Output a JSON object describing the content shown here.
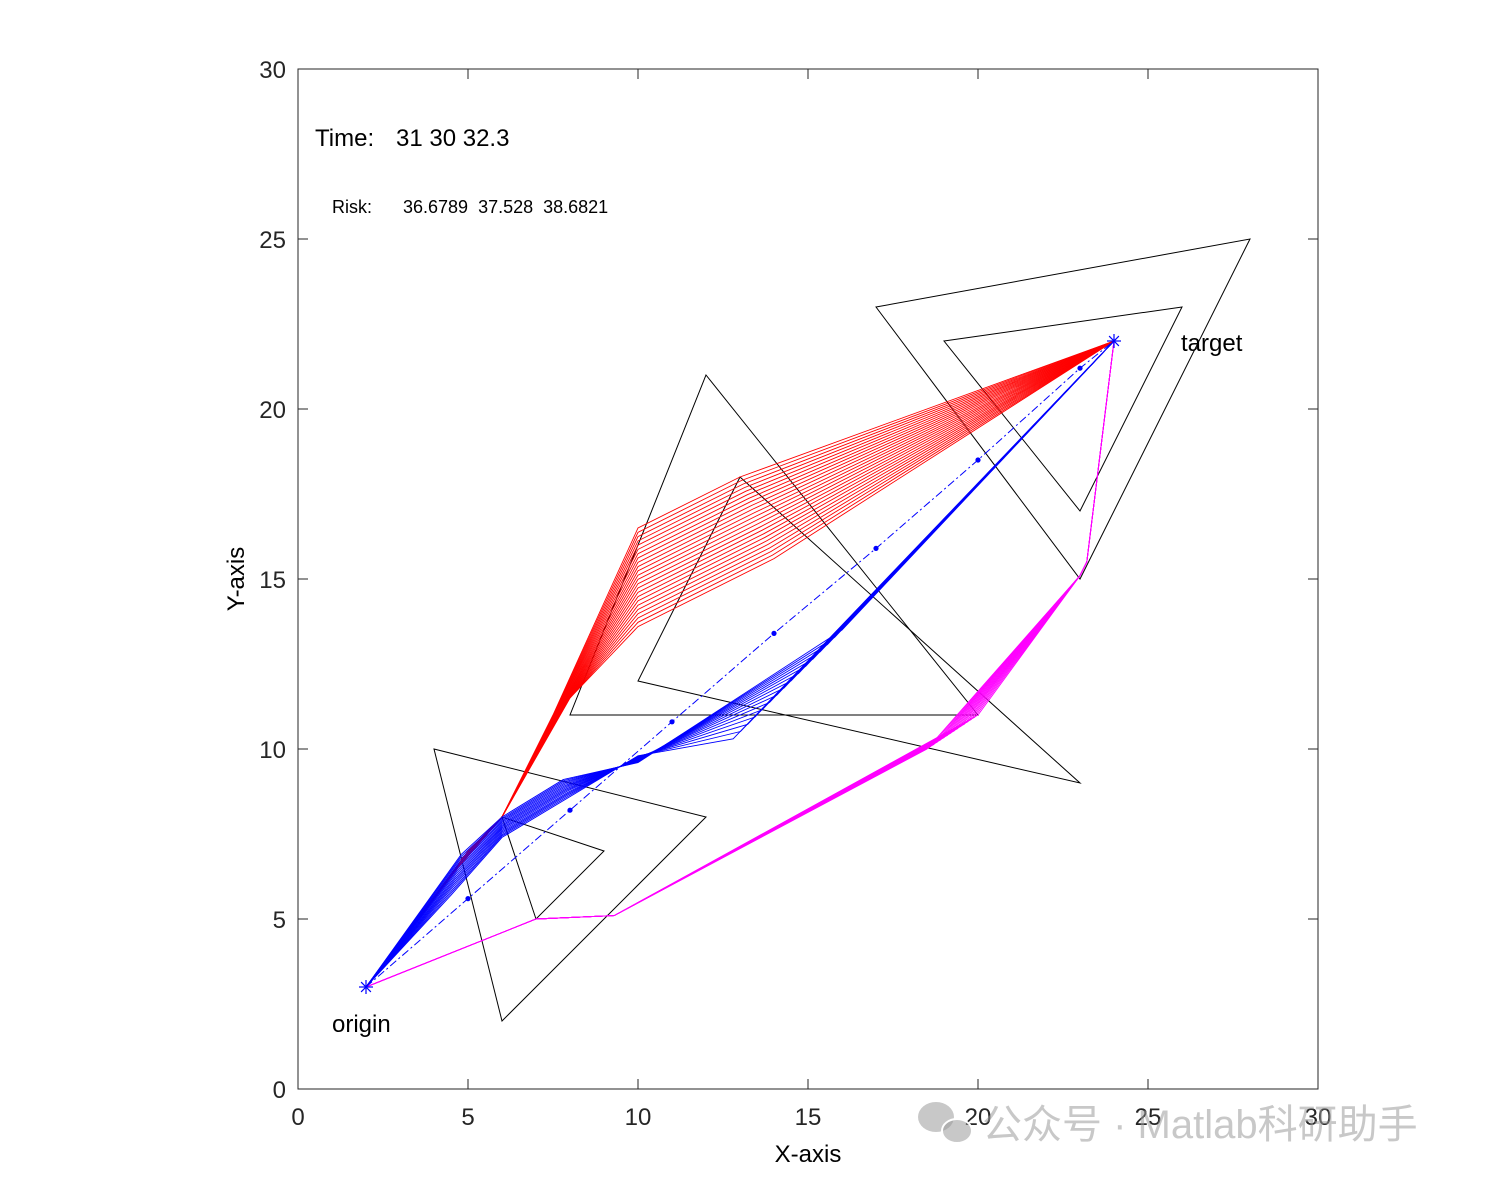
{
  "chart_data": {
    "type": "line",
    "title": "",
    "xlabel": "X-axis",
    "ylabel": "Y-axis",
    "xlim": [
      0,
      30
    ],
    "ylim": [
      0,
      30
    ],
    "xticks": [
      0,
      5,
      10,
      15,
      20,
      25,
      30
    ],
    "yticks": [
      0,
      5,
      10,
      15,
      20,
      25,
      30
    ],
    "grid": false,
    "legend": "none",
    "annotations": {
      "time_label": "Time:",
      "time_values": "31 30 32.3",
      "risk_label": "Risk:",
      "risk_values": "36.6789  37.528  38.6821",
      "origin_label": "origin",
      "target_label": "target"
    },
    "origin": [
      2,
      3
    ],
    "target": [
      24,
      22
    ],
    "obstacles": [
      [
        [
          4,
          10
        ],
        [
          12,
          8
        ],
        [
          6,
          2
        ]
      ],
      [
        [
          6,
          8
        ],
        [
          9,
          7
        ],
        [
          7,
          5
        ]
      ],
      [
        [
          12,
          21
        ],
        [
          20,
          11
        ],
        [
          8,
          11
        ]
      ],
      [
        [
          13,
          18
        ],
        [
          23,
          9
        ],
        [
          10,
          12
        ]
      ],
      [
        [
          17,
          23
        ],
        [
          28,
          25
        ],
        [
          23,
          15
        ]
      ],
      [
        [
          19,
          22
        ],
        [
          26,
          23
        ],
        [
          23,
          17
        ]
      ]
    ],
    "series": [
      {
        "color": "#ff0000",
        "start": [
          [
            2,
            3
          ],
          [
            4.7,
            6.5
          ],
          [
            6,
            8
          ],
          [
            7.5,
            11
          ],
          [
            10,
            16.5
          ],
          [
            13,
            18
          ],
          [
            24,
            22
          ]
        ],
        "end": [
          [
            2,
            3
          ],
          [
            5,
            7
          ],
          [
            6,
            8
          ],
          [
            8,
            11.5
          ],
          [
            10,
            13.6
          ],
          [
            14,
            15.6
          ],
          [
            24,
            22
          ]
        ],
        "count": 24
      },
      {
        "color": "#0000ff",
        "start": [
          [
            2,
            3
          ],
          [
            4.8,
            6.9
          ],
          [
            6,
            8
          ],
          [
            7.8,
            9.1
          ],
          [
            10,
            9.6
          ],
          [
            16,
            13.5
          ],
          [
            24,
            22
          ]
        ],
        "end": [
          [
            2,
            3
          ],
          [
            4.5,
            5.7
          ],
          [
            6,
            7.4
          ],
          [
            8,
            8.6
          ],
          [
            10,
            9.8
          ],
          [
            12.8,
            10.3
          ],
          [
            24,
            22
          ]
        ],
        "count": 16
      },
      {
        "color": "#ff00ff",
        "start": [
          [
            2,
            3
          ],
          [
            7,
            5
          ],
          [
            9.3,
            5.1
          ],
          [
            18.5,
            10
          ],
          [
            23,
            15.1
          ],
          [
            23.2,
            15.5
          ],
          [
            24,
            22
          ]
        ],
        "end": [
          [
            2,
            3
          ],
          [
            7,
            5
          ],
          [
            9.3,
            5.1
          ],
          [
            20,
            11
          ],
          [
            23,
            15.1
          ],
          [
            23.2,
            15.5
          ],
          [
            24,
            22
          ]
        ],
        "count": 16
      }
    ],
    "reference_path": {
      "color": "#0000ff",
      "points": [
        [
          2,
          3
        ],
        [
          5,
          5.6
        ],
        [
          8,
          8.2
        ],
        [
          11,
          10.8
        ],
        [
          14,
          13.4
        ],
        [
          17,
          15.9
        ],
        [
          20,
          18.5
        ],
        [
          23,
          21.2
        ],
        [
          24,
          22
        ]
      ]
    }
  },
  "watermark": {
    "text": "公众号 · Matlab科研助手"
  }
}
